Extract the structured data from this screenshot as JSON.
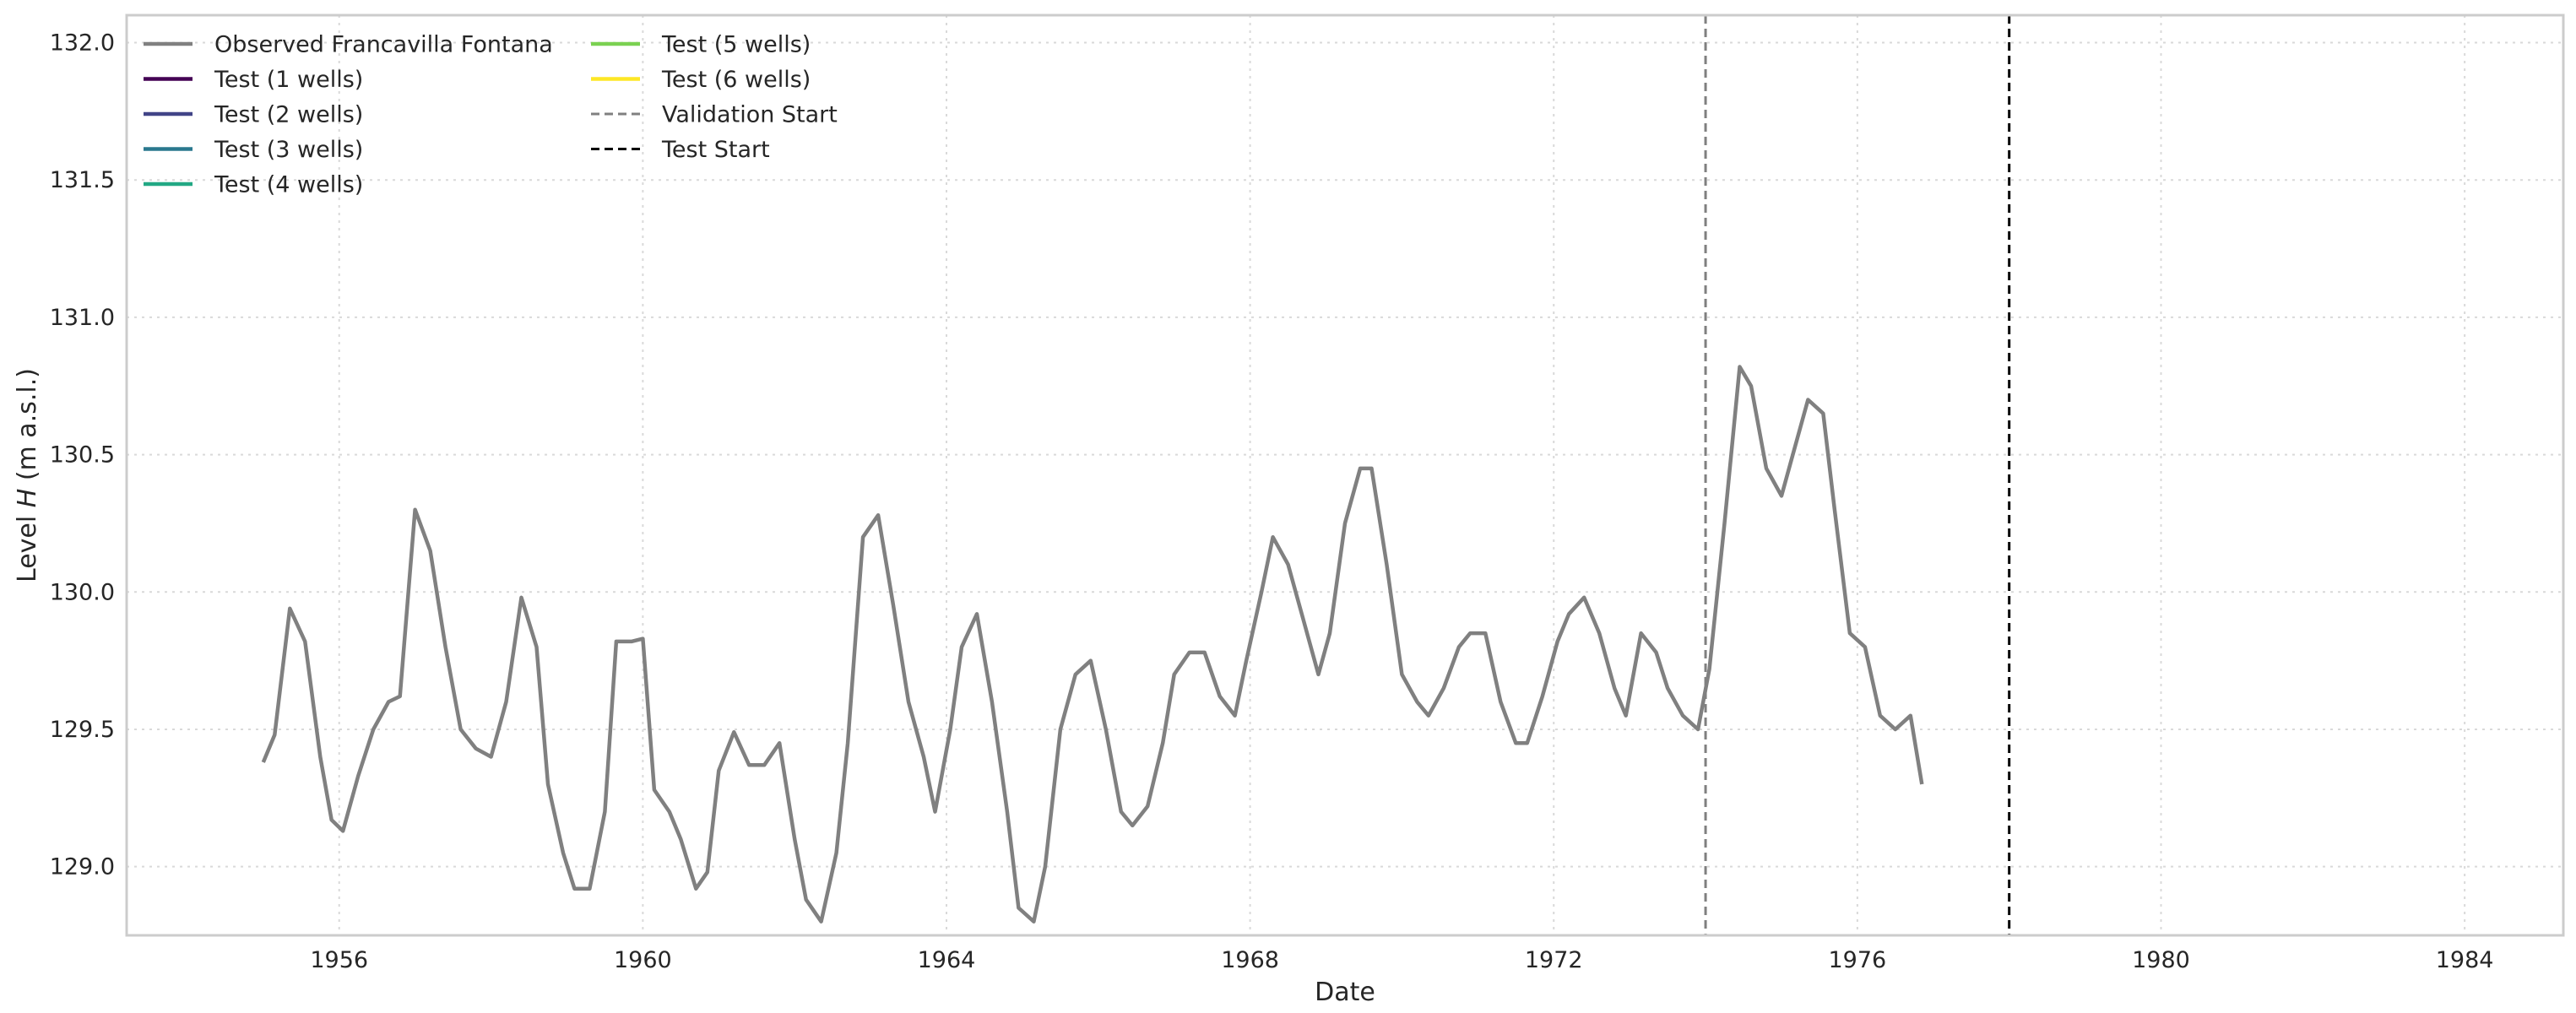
{
  "chart_data": {
    "type": "line",
    "title": "",
    "xlabel": "Date",
    "ylabel_prefix": "Level ",
    "ylabel_var": "H",
    "ylabel_suffix": " (m a.s.l.)",
    "xlim": [
      1953.2,
      1985.3
    ],
    "ylim": [
      128.75,
      132.1
    ],
    "x_ticks": [
      1956,
      1960,
      1964,
      1968,
      1972,
      1976,
      1980,
      1984
    ],
    "y_ticks": [
      129.0,
      129.5,
      130.0,
      130.5,
      131.0,
      131.5,
      132.0
    ],
    "y_tick_labels": [
      "129.0",
      "129.5",
      "130.0",
      "130.5",
      "131.0",
      "131.5",
      "132.0"
    ],
    "grid": true,
    "legend_position": "top-left",
    "colors": {
      "observed": "#808080",
      "test1": "#440154",
      "test2": "#414487",
      "test3": "#2a788e",
      "test4": "#22a884",
      "test5": "#7ad151",
      "test6": "#fde725",
      "validation_start": "#808080",
      "test_start": "#000000"
    },
    "legend": [
      {
        "label": "Observed Francavilla Fontana",
        "key": "observed",
        "dash": "solid"
      },
      {
        "label": "Test (1 wells)",
        "key": "test1",
        "dash": "solid"
      },
      {
        "label": "Test (2 wells)",
        "key": "test2",
        "dash": "solid"
      },
      {
        "label": "Test (3 wells)",
        "key": "test3",
        "dash": "solid"
      },
      {
        "label": "Test (4 wells)",
        "key": "test4",
        "dash": "solid"
      },
      {
        "label": "Test (5 wells)",
        "key": "test5",
        "dash": "solid"
      },
      {
        "label": "Test (6 wells)",
        "key": "test6",
        "dash": "solid"
      },
      {
        "label": "Validation Start",
        "key": "validation_start",
        "dash": "dashed"
      },
      {
        "label": "Test Start",
        "key": "test_start",
        "dash": "dashed"
      }
    ],
    "vlines": [
      {
        "key": "validation_start",
        "x": 1974.0
      },
      {
        "key": "test_start",
        "x": 1978.0
      }
    ],
    "observed": {
      "name": "Observed Francavilla Fontana",
      "points": [
        [
          1955.0,
          129.38
        ],
        [
          1955.15,
          129.48
        ],
        [
          1955.35,
          129.94
        ],
        [
          1955.55,
          129.82
        ],
        [
          1955.75,
          129.4
        ],
        [
          1955.9,
          129.17
        ],
        [
          1956.05,
          129.13
        ],
        [
          1956.25,
          129.33
        ],
        [
          1956.45,
          129.5
        ],
        [
          1956.65,
          129.6
        ],
        [
          1956.8,
          129.62
        ],
        [
          1957.0,
          130.3
        ],
        [
          1957.2,
          130.15
        ],
        [
          1957.4,
          129.8
        ],
        [
          1957.6,
          129.5
        ],
        [
          1957.8,
          129.43
        ],
        [
          1958.0,
          129.4
        ],
        [
          1958.2,
          129.6
        ],
        [
          1958.4,
          129.98
        ],
        [
          1958.6,
          129.8
        ],
        [
          1958.75,
          129.3
        ],
        [
          1958.95,
          129.05
        ],
        [
          1959.1,
          128.92
        ],
        [
          1959.3,
          128.92
        ],
        [
          1959.5,
          129.2
        ],
        [
          1959.65,
          129.82
        ],
        [
          1959.85,
          129.82
        ],
        [
          1960.0,
          129.83
        ],
        [
          1960.15,
          129.28
        ],
        [
          1960.35,
          129.2
        ],
        [
          1960.5,
          129.1
        ],
        [
          1960.7,
          128.92
        ],
        [
          1960.85,
          128.98
        ],
        [
          1961.0,
          129.35
        ],
        [
          1961.2,
          129.49
        ],
        [
          1961.4,
          129.37
        ],
        [
          1961.6,
          129.37
        ],
        [
          1961.8,
          129.45
        ],
        [
          1962.0,
          129.1
        ],
        [
          1962.15,
          128.88
        ],
        [
          1962.35,
          128.8
        ],
        [
          1962.55,
          129.05
        ],
        [
          1962.7,
          129.45
        ],
        [
          1962.9,
          130.2
        ],
        [
          1963.1,
          130.28
        ],
        [
          1963.3,
          129.95
        ],
        [
          1963.5,
          129.6
        ],
        [
          1963.7,
          129.4
        ],
        [
          1963.85,
          129.2
        ],
        [
          1964.05,
          129.5
        ],
        [
          1964.2,
          129.8
        ],
        [
          1964.4,
          129.92
        ],
        [
          1964.6,
          129.6
        ],
        [
          1964.8,
          129.2
        ],
        [
          1964.95,
          128.85
        ],
        [
          1965.15,
          128.8
        ],
        [
          1965.3,
          129.0
        ],
        [
          1965.5,
          129.5
        ],
        [
          1965.7,
          129.7
        ],
        [
          1965.9,
          129.75
        ],
        [
          1966.1,
          129.5
        ],
        [
          1966.3,
          129.2
        ],
        [
          1966.45,
          129.15
        ],
        [
          1966.65,
          129.22
        ],
        [
          1966.85,
          129.45
        ],
        [
          1967.0,
          129.7
        ],
        [
          1967.2,
          129.78
        ],
        [
          1967.4,
          129.78
        ],
        [
          1967.6,
          129.62
        ],
        [
          1967.8,
          129.55
        ],
        [
          1967.95,
          129.75
        ],
        [
          1968.15,
          130.0
        ],
        [
          1968.3,
          130.2
        ],
        [
          1968.5,
          130.1
        ],
        [
          1968.7,
          129.9
        ],
        [
          1968.9,
          129.7
        ],
        [
          1969.05,
          129.85
        ],
        [
          1969.25,
          130.25
        ],
        [
          1969.45,
          130.45
        ],
        [
          1969.6,
          130.45
        ],
        [
          1969.8,
          130.1
        ],
        [
          1970.0,
          129.7
        ],
        [
          1970.2,
          129.6
        ],
        [
          1970.35,
          129.55
        ],
        [
          1970.55,
          129.65
        ],
        [
          1970.75,
          129.8
        ],
        [
          1970.9,
          129.85
        ],
        [
          1971.1,
          129.85
        ],
        [
          1971.3,
          129.6
        ],
        [
          1971.5,
          129.45
        ],
        [
          1971.65,
          129.45
        ],
        [
          1971.85,
          129.62
        ],
        [
          1972.05,
          129.82
        ],
        [
          1972.2,
          129.92
        ],
        [
          1972.4,
          129.98
        ],
        [
          1972.6,
          129.85
        ],
        [
          1972.8,
          129.65
        ],
        [
          1972.95,
          129.55
        ],
        [
          1973.15,
          129.85
        ],
        [
          1973.35,
          129.78
        ],
        [
          1973.5,
          129.65
        ],
        [
          1973.7,
          129.55
        ],
        [
          1973.9,
          129.5
        ],
        [
          1974.05,
          129.72
        ],
        [
          1974.25,
          130.25
        ],
        [
          1974.45,
          130.82
        ],
        [
          1974.6,
          130.75
        ],
        [
          1974.8,
          130.45
        ],
        [
          1975.0,
          130.35
        ],
        [
          1975.15,
          130.5
        ],
        [
          1975.35,
          130.7
        ],
        [
          1975.55,
          130.65
        ],
        [
          1975.7,
          130.3
        ],
        [
          1975.9,
          129.85
        ],
        [
          1976.1,
          129.8
        ],
        [
          1976.3,
          129.55
        ],
        [
          1976.5,
          129.5
        ],
        [
          1976.7,
          129.55
        ],
        [
          1976.85,
          129.3
        ]
      ]
    }
  }
}
